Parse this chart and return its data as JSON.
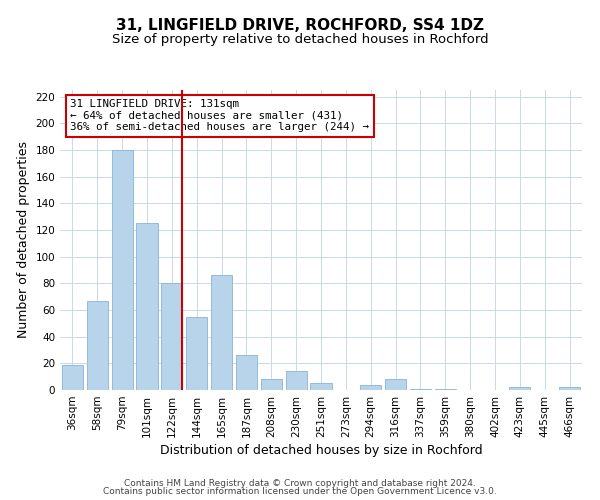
{
  "title": "31, LINGFIELD DRIVE, ROCHFORD, SS4 1DZ",
  "subtitle": "Size of property relative to detached houses in Rochford",
  "xlabel": "Distribution of detached houses by size in Rochford",
  "ylabel": "Number of detached properties",
  "categories": [
    "36sqm",
    "58sqm",
    "79sqm",
    "101sqm",
    "122sqm",
    "144sqm",
    "165sqm",
    "187sqm",
    "208sqm",
    "230sqm",
    "251sqm",
    "273sqm",
    "294sqm",
    "316sqm",
    "337sqm",
    "359sqm",
    "380sqm",
    "402sqm",
    "423sqm",
    "445sqm",
    "466sqm"
  ],
  "values": [
    19,
    67,
    180,
    125,
    80,
    55,
    86,
    26,
    8,
    14,
    5,
    0,
    4,
    8,
    1,
    1,
    0,
    0,
    2,
    0,
    2
  ],
  "bar_color": "#b8d4ea",
  "bar_edge_color": "#8ab4d4",
  "vline_x_index": 4,
  "vline_color": "#cc0000",
  "annotation_line1": "31 LINGFIELD DRIVE: 131sqm",
  "annotation_line2": "← 64% of detached houses are smaller (431)",
  "annotation_line3": "36% of semi-detached houses are larger (244) →",
  "annotation_box_color": "#cc0000",
  "ylim": [
    0,
    225
  ],
  "yticks": [
    0,
    20,
    40,
    60,
    80,
    100,
    120,
    140,
    160,
    180,
    200,
    220
  ],
  "footer_line1": "Contains HM Land Registry data © Crown copyright and database right 2024.",
  "footer_line2": "Contains public sector information licensed under the Open Government Licence v3.0.",
  "background_color": "#ffffff",
  "grid_color": "#c8d8e8",
  "title_fontsize": 11,
  "subtitle_fontsize": 9.5,
  "axis_label_fontsize": 9,
  "tick_fontsize": 7.5,
  "footer_fontsize": 6.5
}
